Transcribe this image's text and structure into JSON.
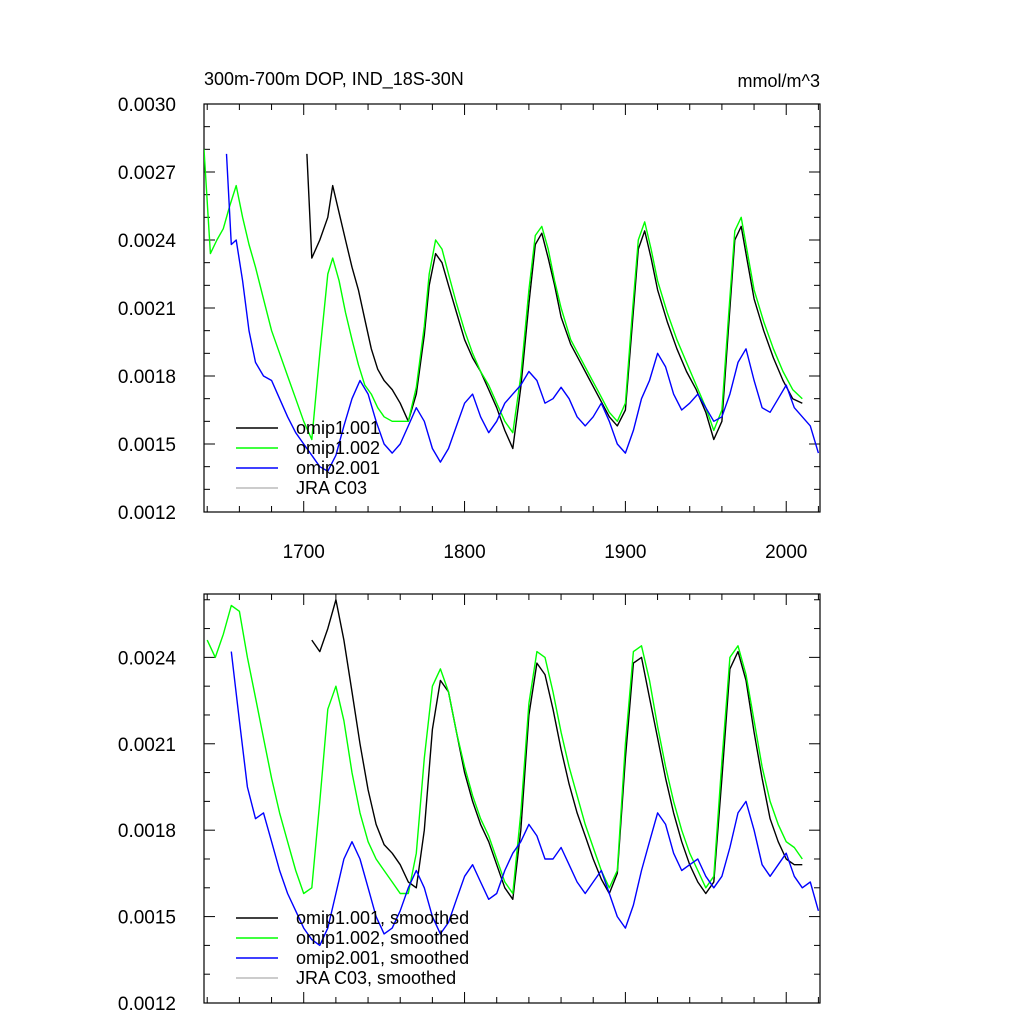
{
  "chart_data": [
    {
      "type": "line",
      "title": "300m-700m DOP, IND_18S-30N",
      "units": "mmol/m^3",
      "xlabel": "",
      "ylabel": "",
      "xlim": [
        1638,
        2021
      ],
      "ylim": [
        0.0012,
        0.003
      ],
      "yticks": [
        "0.0012",
        "0.0015",
        "0.0018",
        "0.0021",
        "0.0024",
        "0.0027",
        "0.0030"
      ],
      "xticks": [
        "1700",
        "1800",
        "1900",
        "2000"
      ],
      "legend": "bottom-left",
      "series": [
        {
          "name": "omip1.001",
          "color": "#000000",
          "x": [
            1702,
            1705,
            1710,
            1715,
            1718,
            1722,
            1726,
            1730,
            1734,
            1738,
            1742,
            1746,
            1750,
            1755,
            1760,
            1765,
            1770,
            1775,
            1778,
            1782,
            1786,
            1790,
            1795,
            1800,
            1805,
            1810,
            1815,
            1820,
            1825,
            1830,
            1835,
            1840,
            1844,
            1848,
            1852,
            1856,
            1860,
            1866,
            1872,
            1878,
            1884,
            1890,
            1895,
            1900,
            1904,
            1908,
            1912,
            1916,
            1920,
            1926,
            1932,
            1938,
            1944,
            1950,
            1955,
            1960,
            1964,
            1968,
            1972,
            1976,
            1980,
            1986,
            1992,
            1998,
            2004,
            2010
          ],
          "y": [
            0.00278,
            0.00232,
            0.0024,
            0.0025,
            0.00264,
            0.00252,
            0.0024,
            0.00228,
            0.00218,
            0.00205,
            0.00192,
            0.00183,
            0.00178,
            0.00174,
            0.00168,
            0.0016,
            0.00172,
            0.00198,
            0.0022,
            0.00234,
            0.0023,
            0.0022,
            0.00208,
            0.00196,
            0.00188,
            0.00182,
            0.00174,
            0.00166,
            0.00156,
            0.00148,
            0.00175,
            0.00212,
            0.00238,
            0.00243,
            0.00232,
            0.0022,
            0.00206,
            0.00194,
            0.00186,
            0.00178,
            0.0017,
            0.00162,
            0.00158,
            0.00165,
            0.002,
            0.00236,
            0.00244,
            0.00232,
            0.00218,
            0.00204,
            0.00192,
            0.00182,
            0.00174,
            0.00164,
            0.00152,
            0.0016,
            0.002,
            0.0024,
            0.00246,
            0.0023,
            0.00214,
            0.002,
            0.00188,
            0.00178,
            0.0017,
            0.00168
          ]
        },
        {
          "name": "omip1.002",
          "color": "#00ff00",
          "x": [
            1638,
            1642,
            1646,
            1650,
            1654,
            1658,
            1662,
            1666,
            1670,
            1675,
            1680,
            1685,
            1690,
            1695,
            1700,
            1705,
            1710,
            1715,
            1718,
            1722,
            1726,
            1730,
            1734,
            1738,
            1742,
            1746,
            1750,
            1755,
            1760,
            1765,
            1770,
            1775,
            1778,
            1782,
            1786,
            1790,
            1795,
            1800,
            1805,
            1810,
            1815,
            1820,
            1825,
            1830,
            1835,
            1840,
            1844,
            1848,
            1852,
            1856,
            1860,
            1866,
            1872,
            1878,
            1884,
            1890,
            1895,
            1900,
            1904,
            1908,
            1912,
            1916,
            1920,
            1926,
            1932,
            1938,
            1944,
            1950,
            1955,
            1960,
            1964,
            1968,
            1972,
            1976,
            1980,
            1986,
            1992,
            1998,
            2004,
            2010
          ],
          "y": [
            0.0028,
            0.00234,
            0.0024,
            0.00245,
            0.00255,
            0.00264,
            0.0025,
            0.00238,
            0.00228,
            0.00214,
            0.002,
            0.0019,
            0.0018,
            0.0017,
            0.0016,
            0.00152,
            0.0019,
            0.00225,
            0.00232,
            0.00222,
            0.00208,
            0.00196,
            0.00185,
            0.00176,
            0.00172,
            0.00166,
            0.00162,
            0.0016,
            0.0016,
            0.0016,
            0.00175,
            0.00202,
            0.00225,
            0.0024,
            0.00236,
            0.00225,
            0.00212,
            0.002,
            0.0019,
            0.00182,
            0.00176,
            0.00168,
            0.0016,
            0.00155,
            0.0018,
            0.00218,
            0.00242,
            0.00246,
            0.00236,
            0.00222,
            0.0021,
            0.00196,
            0.00188,
            0.0018,
            0.00172,
            0.00164,
            0.0016,
            0.00168,
            0.00205,
            0.0024,
            0.00248,
            0.00236,
            0.00222,
            0.00208,
            0.00196,
            0.00186,
            0.00176,
            0.00166,
            0.00156,
            0.00165,
            0.00205,
            0.00244,
            0.0025,
            0.00234,
            0.00218,
            0.00204,
            0.00192,
            0.00182,
            0.00174,
            0.0017
          ]
        },
        {
          "name": "omip2.001",
          "color": "#0000ff",
          "x": [
            1652,
            1655,
            1658,
            1662,
            1666,
            1670,
            1675,
            1680,
            1685,
            1690,
            1695,
            1700,
            1705,
            1710,
            1715,
            1720,
            1725,
            1730,
            1735,
            1740,
            1745,
            1750,
            1755,
            1760,
            1765,
            1770,
            1775,
            1780,
            1785,
            1790,
            1795,
            1800,
            1805,
            1810,
            1815,
            1820,
            1825,
            1830,
            1835,
            1840,
            1845,
            1850,
            1855,
            1860,
            1865,
            1870,
            1875,
            1880,
            1885,
            1890,
            1895,
            1900,
            1905,
            1910,
            1915,
            1920,
            1925,
            1930,
            1935,
            1940,
            1945,
            1950,
            1955,
            1960,
            1965,
            1970,
            1975,
            1980,
            1985,
            1990,
            1995,
            2000,
            2005,
            2010,
            2015,
            2020
          ],
          "y": [
            0.00278,
            0.00238,
            0.0024,
            0.00222,
            0.002,
            0.00186,
            0.0018,
            0.00178,
            0.0017,
            0.00162,
            0.00155,
            0.0015,
            0.00145,
            0.0014,
            0.00138,
            0.00145,
            0.00158,
            0.0017,
            0.00178,
            0.00172,
            0.0016,
            0.0015,
            0.00146,
            0.0015,
            0.00158,
            0.00166,
            0.0016,
            0.00148,
            0.00142,
            0.00148,
            0.00158,
            0.00168,
            0.00172,
            0.00162,
            0.00155,
            0.0016,
            0.00168,
            0.00172,
            0.00176,
            0.00182,
            0.00178,
            0.00168,
            0.0017,
            0.00175,
            0.0017,
            0.00162,
            0.00158,
            0.00162,
            0.00168,
            0.0016,
            0.0015,
            0.00146,
            0.00156,
            0.0017,
            0.00178,
            0.0019,
            0.00184,
            0.00172,
            0.00165,
            0.00168,
            0.00172,
            0.00166,
            0.0016,
            0.00162,
            0.00172,
            0.00186,
            0.00192,
            0.00178,
            0.00166,
            0.00164,
            0.0017,
            0.00176,
            0.00166,
            0.00162,
            0.00158,
            0.00146
          ]
        },
        {
          "name": "JRA C03",
          "color": "#bbbbbb",
          "x": [],
          "y": []
        }
      ]
    },
    {
      "type": "line",
      "title": "",
      "units": "",
      "xlabel": "",
      "ylabel": "",
      "xlim": [
        1638,
        2021
      ],
      "ylim": [
        0.0012,
        0.00262
      ],
      "yticks": [
        "0.0012",
        "0.0015",
        "0.0018",
        "0.0021",
        "0.0024"
      ],
      "xticks": [],
      "legend": "bottom-left",
      "series": [
        {
          "name": "omip1.001, smoothed",
          "color": "#000000",
          "x": [
            1705,
            1710,
            1715,
            1720,
            1725,
            1730,
            1735,
            1740,
            1745,
            1750,
            1755,
            1760,
            1765,
            1770,
            1775,
            1780,
            1785,
            1790,
            1795,
            1800,
            1805,
            1810,
            1815,
            1820,
            1825,
            1830,
            1835,
            1840,
            1845,
            1850,
            1855,
            1860,
            1865,
            1870,
            1875,
            1880,
            1885,
            1890,
            1895,
            1900,
            1905,
            1910,
            1915,
            1920,
            1925,
            1930,
            1935,
            1940,
            1945,
            1950,
            1955,
            1960,
            1965,
            1970,
            1975,
            1980,
            1985,
            1990,
            1995,
            2000,
            2005,
            2010
          ],
          "y": [
            0.00246,
            0.00242,
            0.0025,
            0.0026,
            0.00246,
            0.00228,
            0.0021,
            0.00194,
            0.00182,
            0.00175,
            0.00172,
            0.00168,
            0.00162,
            0.0016,
            0.0018,
            0.00215,
            0.00232,
            0.00228,
            0.00214,
            0.002,
            0.0019,
            0.00182,
            0.00176,
            0.00168,
            0.0016,
            0.00156,
            0.0018,
            0.0022,
            0.00238,
            0.00234,
            0.00222,
            0.00208,
            0.00196,
            0.00186,
            0.00178,
            0.0017,
            0.00163,
            0.00158,
            0.00165,
            0.00205,
            0.00238,
            0.0024,
            0.00226,
            0.00212,
            0.00198,
            0.00186,
            0.00176,
            0.00168,
            0.00162,
            0.00158,
            0.00162,
            0.00198,
            0.00236,
            0.00242,
            0.00232,
            0.00214,
            0.00198,
            0.00184,
            0.00176,
            0.0017,
            0.00168,
            0.00168
          ]
        },
        {
          "name": "omip1.002, smoothed",
          "color": "#00ff00",
          "x": [
            1640,
            1645,
            1650,
            1655,
            1660,
            1665,
            1670,
            1675,
            1680,
            1685,
            1690,
            1695,
            1700,
            1705,
            1710,
            1715,
            1720,
            1725,
            1730,
            1735,
            1740,
            1745,
            1750,
            1755,
            1760,
            1765,
            1770,
            1775,
            1780,
            1785,
            1790,
            1795,
            1800,
            1805,
            1810,
            1815,
            1820,
            1825,
            1830,
            1835,
            1840,
            1845,
            1850,
            1855,
            1860,
            1865,
            1870,
            1875,
            1880,
            1885,
            1890,
            1895,
            1900,
            1905,
            1910,
            1915,
            1920,
            1925,
            1930,
            1935,
            1940,
            1945,
            1950,
            1955,
            1960,
            1965,
            1970,
            1975,
            1980,
            1985,
            1990,
            1995,
            2000,
            2005,
            2010
          ],
          "y": [
            0.00246,
            0.0024,
            0.00248,
            0.00258,
            0.00256,
            0.0024,
            0.00226,
            0.00212,
            0.00198,
            0.00186,
            0.00176,
            0.00166,
            0.00158,
            0.0016,
            0.0019,
            0.00222,
            0.0023,
            0.00218,
            0.002,
            0.00186,
            0.00176,
            0.0017,
            0.00166,
            0.00162,
            0.00158,
            0.00158,
            0.00172,
            0.00205,
            0.0023,
            0.00236,
            0.00228,
            0.00214,
            0.00202,
            0.00192,
            0.00184,
            0.00178,
            0.0017,
            0.00162,
            0.00158,
            0.00186,
            0.00224,
            0.00242,
            0.0024,
            0.00228,
            0.00214,
            0.00202,
            0.00192,
            0.00182,
            0.00174,
            0.00166,
            0.0016,
            0.00166,
            0.0021,
            0.00242,
            0.00244,
            0.00232,
            0.00216,
            0.00202,
            0.0019,
            0.0018,
            0.00172,
            0.00166,
            0.0016,
            0.00164,
            0.00204,
            0.0024,
            0.00244,
            0.00234,
            0.00218,
            0.00202,
            0.0019,
            0.00182,
            0.00176,
            0.00174,
            0.0017
          ]
        },
        {
          "name": "omip2.001, smoothed",
          "color": "#0000ff",
          "x": [
            1655,
            1660,
            1665,
            1670,
            1675,
            1680,
            1685,
            1690,
            1695,
            1700,
            1705,
            1710,
            1715,
            1720,
            1725,
            1730,
            1735,
            1740,
            1745,
            1750,
            1755,
            1760,
            1765,
            1770,
            1775,
            1780,
            1785,
            1790,
            1795,
            1800,
            1805,
            1810,
            1815,
            1820,
            1825,
            1830,
            1835,
            1840,
            1845,
            1850,
            1855,
            1860,
            1865,
            1870,
            1875,
            1880,
            1885,
            1890,
            1895,
            1900,
            1905,
            1910,
            1915,
            1920,
            1925,
            1930,
            1935,
            1940,
            1945,
            1950,
            1955,
            1960,
            1965,
            1970,
            1975,
            1980,
            1985,
            1990,
            1995,
            2000,
            2005,
            2010,
            2015,
            2020
          ],
          "y": [
            0.00242,
            0.00218,
            0.00195,
            0.00184,
            0.00186,
            0.00176,
            0.00166,
            0.00158,
            0.00152,
            0.00146,
            0.00142,
            0.0014,
            0.00146,
            0.00158,
            0.0017,
            0.00176,
            0.0017,
            0.0016,
            0.0015,
            0.00144,
            0.00146,
            0.00152,
            0.0016,
            0.00166,
            0.0016,
            0.0015,
            0.00144,
            0.00148,
            0.00156,
            0.00164,
            0.00168,
            0.00162,
            0.00156,
            0.00158,
            0.00166,
            0.00172,
            0.00176,
            0.00182,
            0.00178,
            0.0017,
            0.0017,
            0.00174,
            0.00168,
            0.00162,
            0.00158,
            0.00162,
            0.00166,
            0.00158,
            0.0015,
            0.00146,
            0.00154,
            0.00166,
            0.00176,
            0.00186,
            0.00182,
            0.00172,
            0.00166,
            0.00168,
            0.0017,
            0.00164,
            0.0016,
            0.00164,
            0.00174,
            0.00186,
            0.0019,
            0.0018,
            0.00168,
            0.00164,
            0.00168,
            0.00172,
            0.00164,
            0.0016,
            0.00162,
            0.00152
          ]
        },
        {
          "name": "JRA C03, smoothed",
          "color": "#bbbbbb",
          "x": [],
          "y": []
        }
      ]
    }
  ]
}
